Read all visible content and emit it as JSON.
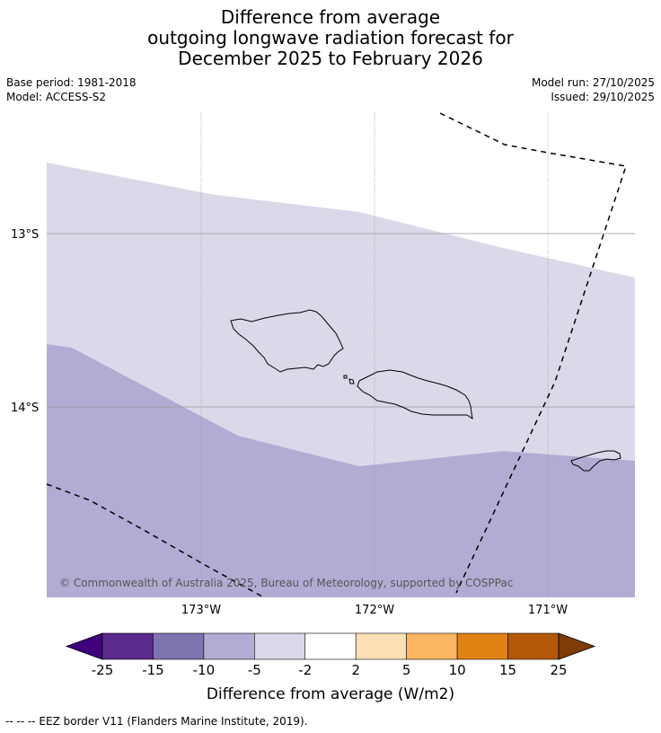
{
  "title": {
    "line1": "Difference from average",
    "line2": "outgoing longwave radiation forecast for",
    "line3": "December 2025 to February 2026"
  },
  "meta": {
    "base_period": "Base period: 1981-2018",
    "model": "Model: ACCESS-S2",
    "model_run": "Model run: 27/10/2025",
    "issued": "Issued: 29/10/2025"
  },
  "map": {
    "lat_labels": [
      "13°S",
      "14°S"
    ],
    "lon_labels": [
      "173°W",
      "172°W",
      "171°W"
    ],
    "copyright": "© Commonwealth of Australia 2025, Bureau of Meteorology, supported by COSPPac",
    "regions": [
      {
        "name": "-5 to -2 W/m2 band",
        "color": "#d9d9ea"
      },
      {
        "name": "-10 to -5 W/m2 band",
        "color": "#b1acd3"
      }
    ]
  },
  "colorbar": {
    "colors": [
      "#3f007d",
      "#5a2a8d",
      "#8074b0",
      "#b1acd3",
      "#d9d9ea",
      "#ffffff",
      "#fee0b6",
      "#fbb761",
      "#e08214",
      "#b35806",
      "#7f3b08"
    ],
    "tick_labels": [
      "-25",
      "-15",
      "-10",
      "-5",
      "-2",
      "2",
      "5",
      "10",
      "15",
      "25"
    ],
    "label": "Difference from average (W/m2)"
  },
  "footnote": "--  --  -- EEZ border V11 (Flanders Marine Institute, 2019)."
}
